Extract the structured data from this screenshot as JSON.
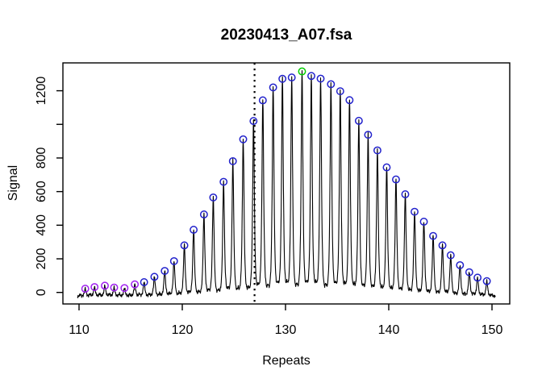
{
  "title": "20230413_A07.fsa",
  "colors": {
    "trace": "#000000",
    "axis": "#000000",
    "marker_blue": "#2222CC",
    "marker_purple": "#A020F0",
    "marker_green": "#00CD00",
    "vline": "#000000"
  },
  "chart_data": {
    "type": "line",
    "title": "20230413_A07.fsa",
    "xlabel": "Repeats",
    "ylabel": "Signal",
    "xlim": [
      108.4,
      151.7
    ],
    "ylim": [
      -70,
      1370
    ],
    "grid": false,
    "x_ticks": [
      110,
      120,
      130,
      140,
      150
    ],
    "y_ticks": [
      0,
      200,
      400,
      600,
      800,
      1000,
      1200
    ],
    "y_tick_labels": [
      "0",
      "200",
      "400",
      "600",
      "800",
      "",
      "1200"
    ],
    "vline": {
      "x": 127,
      "style": "dotted"
    },
    "series_note": "called peaks: x = repeat number, y = signal height, c = marker color",
    "peaks": [
      {
        "x": 110.6,
        "y": 22,
        "c": "purple"
      },
      {
        "x": 111.5,
        "y": 32,
        "c": "purple"
      },
      {
        "x": 112.5,
        "y": 40,
        "c": "purple"
      },
      {
        "x": 113.4,
        "y": 29,
        "c": "purple"
      },
      {
        "x": 114.4,
        "y": 26,
        "c": "purple"
      },
      {
        "x": 115.4,
        "y": 48,
        "c": "purple"
      },
      {
        "x": 116.3,
        "y": 61,
        "c": "blue"
      },
      {
        "x": 117.3,
        "y": 93,
        "c": "blue"
      },
      {
        "x": 118.3,
        "y": 128,
        "c": "blue"
      },
      {
        "x": 119.2,
        "y": 186,
        "c": "blue"
      },
      {
        "x": 120.2,
        "y": 280,
        "c": "blue"
      },
      {
        "x": 121.1,
        "y": 373,
        "c": "blue"
      },
      {
        "x": 122.1,
        "y": 464,
        "c": "blue"
      },
      {
        "x": 123.0,
        "y": 565,
        "c": "blue"
      },
      {
        "x": 124.0,
        "y": 658,
        "c": "blue"
      },
      {
        "x": 124.9,
        "y": 781,
        "c": "blue"
      },
      {
        "x": 125.9,
        "y": 911,
        "c": "blue"
      },
      {
        "x": 126.9,
        "y": 1020,
        "c": "blue"
      },
      {
        "x": 127.8,
        "y": 1143,
        "c": "blue"
      },
      {
        "x": 128.8,
        "y": 1220,
        "c": "blue"
      },
      {
        "x": 129.7,
        "y": 1271,
        "c": "blue"
      },
      {
        "x": 130.6,
        "y": 1279,
        "c": "blue"
      },
      {
        "x": 131.6,
        "y": 1315,
        "c": "green"
      },
      {
        "x": 132.5,
        "y": 1288,
        "c": "blue"
      },
      {
        "x": 133.4,
        "y": 1272,
        "c": "blue"
      },
      {
        "x": 134.4,
        "y": 1239,
        "c": "blue"
      },
      {
        "x": 135.3,
        "y": 1197,
        "c": "blue"
      },
      {
        "x": 136.2,
        "y": 1144,
        "c": "blue"
      },
      {
        "x": 137.1,
        "y": 1021,
        "c": "blue"
      },
      {
        "x": 138.0,
        "y": 938,
        "c": "blue"
      },
      {
        "x": 138.9,
        "y": 845,
        "c": "blue"
      },
      {
        "x": 139.8,
        "y": 744,
        "c": "blue"
      },
      {
        "x": 140.7,
        "y": 672,
        "c": "blue"
      },
      {
        "x": 141.6,
        "y": 584,
        "c": "blue"
      },
      {
        "x": 142.5,
        "y": 480,
        "c": "blue"
      },
      {
        "x": 143.4,
        "y": 421,
        "c": "blue"
      },
      {
        "x": 144.3,
        "y": 336,
        "c": "blue"
      },
      {
        "x": 145.2,
        "y": 280,
        "c": "blue"
      },
      {
        "x": 146.0,
        "y": 221,
        "c": "blue"
      },
      {
        "x": 146.9,
        "y": 162,
        "c": "blue"
      },
      {
        "x": 147.8,
        "y": 120,
        "c": "blue"
      },
      {
        "x": 148.6,
        "y": 88,
        "c": "blue"
      },
      {
        "x": 149.5,
        "y": 67,
        "c": "blue"
      }
    ]
  }
}
